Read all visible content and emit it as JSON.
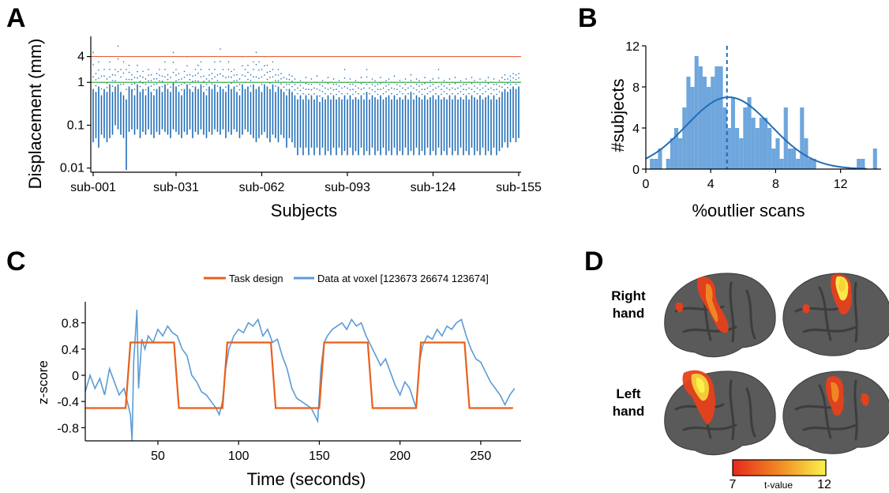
{
  "panels": {
    "a": {
      "label": "A"
    },
    "b": {
      "label": "B"
    },
    "c": {
      "label": "C"
    },
    "d": {
      "label": "D"
    }
  },
  "chart_data": [
    {
      "type": "scatter",
      "panel": "A",
      "title": "",
      "xlabel": "Subjects",
      "ylabel": "Displacement (mm)",
      "x_tick_labels": [
        "sub-001",
        "sub-031",
        "sub-062",
        "sub-093",
        "sub-124",
        "sub-155"
      ],
      "y_tick_labels": [
        "4",
        "1",
        "0.1",
        "0.01"
      ],
      "y_scale": "log",
      "ylim": [
        0.008,
        10
      ],
      "n_subjects": 155,
      "thresholds": [
        {
          "value": 4,
          "color": "#e8603c"
        },
        {
          "value": 1,
          "color": "#3fae49"
        }
      ],
      "point_color": "#1f6db8",
      "subject_ranges_mm": [
        [
          0.04,
          0.7,
          5
        ],
        [
          0.05,
          0.6,
          1.6
        ],
        [
          0.03,
          0.8,
          3
        ],
        [
          0.06,
          0.5,
          1.4
        ],
        [
          0.05,
          0.7,
          2
        ],
        [
          0.04,
          0.6,
          1.2
        ],
        [
          0.05,
          0.9,
          3
        ],
        [
          0.06,
          0.6,
          1.5
        ],
        [
          0.1,
          0.8,
          2
        ],
        [
          0.08,
          0.9,
          7
        ],
        [
          0.06,
          0.6,
          2
        ],
        [
          0.05,
          0.5,
          3
        ],
        [
          0.009,
          0.4,
          2
        ],
        [
          0.07,
          0.8,
          2.5
        ],
        [
          0.08,
          0.7,
          1.5
        ],
        [
          0.06,
          0.5,
          1.3
        ],
        [
          0.08,
          0.9,
          2.5
        ],
        [
          0.05,
          0.6,
          1.4
        ],
        [
          0.07,
          0.7,
          1.8
        ],
        [
          0.06,
          0.5,
          1.2
        ],
        [
          0.08,
          0.8,
          2
        ],
        [
          0.06,
          0.6,
          1.5
        ],
        [
          0.05,
          0.5,
          1.2
        ],
        [
          0.07,
          0.7,
          1.6
        ],
        [
          0.06,
          0.8,
          2
        ],
        [
          0.08,
          0.6,
          1.4
        ],
        [
          0.07,
          0.9,
          3
        ],
        [
          0.06,
          0.7,
          1.5
        ],
        [
          0.05,
          0.6,
          1.3
        ],
        [
          0.08,
          1.0,
          5
        ],
        [
          0.07,
          0.8,
          2
        ],
        [
          0.06,
          0.6,
          1.6
        ],
        [
          0.05,
          0.5,
          1.2
        ],
        [
          0.07,
          0.7,
          1.8
        ],
        [
          0.06,
          0.9,
          4
        ],
        [
          0.08,
          0.7,
          1.5
        ],
        [
          0.05,
          0.6,
          1.4
        ],
        [
          0.07,
          0.8,
          2
        ],
        [
          0.06,
          0.7,
          2.5
        ],
        [
          0.08,
          0.9,
          3
        ],
        [
          0.06,
          0.6,
          1.4
        ],
        [
          0.05,
          0.5,
          1.2
        ],
        [
          0.07,
          0.8,
          2
        ],
        [
          0.06,
          0.7,
          1.6
        ],
        [
          0.08,
          0.9,
          3
        ],
        [
          0.07,
          0.6,
          1.5
        ],
        [
          0.06,
          0.8,
          6
        ],
        [
          0.08,
          0.7,
          2
        ],
        [
          0.05,
          0.6,
          1.3
        ],
        [
          0.07,
          0.9,
          3
        ],
        [
          0.06,
          0.7,
          1.8
        ],
        [
          0.08,
          0.8,
          2
        ],
        [
          0.07,
          0.6,
          1.5
        ],
        [
          0.05,
          0.5,
          1.2
        ],
        [
          0.06,
          0.9,
          4
        ],
        [
          0.08,
          0.7,
          2
        ],
        [
          0.07,
          0.8,
          2.5
        ],
        [
          0.06,
          0.6,
          1.5
        ],
        [
          0.05,
          0.9,
          3
        ],
        [
          0.04,
          0.7,
          5
        ],
        [
          0.05,
          0.8,
          3
        ],
        [
          0.06,
          0.6,
          2
        ],
        [
          0.07,
          0.9,
          4
        ],
        [
          0.05,
          0.8,
          2.5
        ],
        [
          0.04,
          0.7,
          1.8
        ],
        [
          0.06,
          0.9,
          3
        ],
        [
          0.05,
          0.6,
          1.5
        ],
        [
          0.04,
          0.8,
          2
        ],
        [
          0.06,
          0.7,
          1.6
        ],
        [
          0.05,
          0.6,
          1.3
        ],
        [
          0.03,
          0.5,
          1.2
        ],
        [
          0.05,
          0.7,
          1.5
        ],
        [
          0.04,
          0.6,
          1.4
        ],
        [
          0.03,
          0.5,
          1.2
        ],
        [
          0.02,
          0.4,
          1.0
        ],
        [
          0.03,
          0.5,
          1.1
        ],
        [
          0.02,
          0.4,
          1.0
        ],
        [
          0.03,
          0.5,
          1.3
        ],
        [
          0.02,
          0.4,
          0.9
        ],
        [
          0.03,
          0.5,
          1.2
        ],
        [
          0.02,
          0.4,
          1.0
        ],
        [
          0.03,
          0.5,
          1.4
        ],
        [
          0.02,
          0.35,
          0.9
        ],
        [
          0.03,
          0.45,
          1.1
        ],
        [
          0.02,
          0.4,
          1.0
        ],
        [
          0.025,
          0.5,
          1.3
        ],
        [
          0.02,
          0.4,
          1.0
        ],
        [
          0.03,
          0.5,
          1.2
        ],
        [
          0.02,
          0.4,
          0.9
        ],
        [
          0.03,
          0.45,
          1.1
        ],
        [
          0.02,
          0.4,
          1.0
        ],
        [
          0.025,
          0.5,
          2
        ],
        [
          0.02,
          0.4,
          1.0
        ],
        [
          0.03,
          0.5,
          1.2
        ],
        [
          0.02,
          0.4,
          0.9
        ],
        [
          0.025,
          0.45,
          1.1
        ],
        [
          0.02,
          0.4,
          1.0
        ],
        [
          0.03,
          0.5,
          1.3
        ],
        [
          0.02,
          0.4,
          1.0
        ],
        [
          0.025,
          0.6,
          2
        ],
        [
          0.02,
          0.4,
          1.0
        ],
        [
          0.03,
          0.5,
          1.2
        ],
        [
          0.02,
          0.45,
          1.1
        ],
        [
          0.025,
          0.4,
          0.9
        ],
        [
          0.02,
          0.5,
          1.3
        ],
        [
          0.03,
          0.4,
          1.0
        ],
        [
          0.02,
          0.45,
          1.1
        ],
        [
          0.025,
          0.5,
          1.2
        ],
        [
          0.02,
          0.4,
          1.0
        ],
        [
          0.03,
          0.5,
          1.4
        ],
        [
          0.02,
          0.4,
          0.9
        ],
        [
          0.025,
          0.45,
          1.1
        ],
        [
          0.02,
          0.4,
          1.0
        ],
        [
          0.03,
          0.5,
          1.2
        ],
        [
          0.02,
          0.4,
          1.0
        ],
        [
          0.025,
          0.6,
          1.5
        ],
        [
          0.02,
          0.4,
          1.0
        ],
        [
          0.03,
          0.5,
          1.2
        ],
        [
          0.02,
          0.45,
          1.1
        ],
        [
          0.025,
          0.4,
          0.9
        ],
        [
          0.02,
          0.5,
          1.3
        ],
        [
          0.03,
          0.4,
          1.0
        ],
        [
          0.02,
          0.45,
          1.1
        ],
        [
          0.025,
          0.5,
          1.2
        ],
        [
          0.02,
          0.4,
          1.0
        ],
        [
          0.03,
          0.5,
          2
        ],
        [
          0.02,
          0.4,
          0.9
        ],
        [
          0.025,
          0.45,
          1.1
        ],
        [
          0.02,
          0.4,
          1.0
        ],
        [
          0.03,
          0.5,
          1.2
        ],
        [
          0.02,
          0.4,
          1.0
        ],
        [
          0.025,
          0.5,
          1.3
        ],
        [
          0.02,
          0.4,
          1.0
        ],
        [
          0.03,
          0.45,
          1.1
        ],
        [
          0.02,
          0.4,
          0.9
        ],
        [
          0.025,
          0.5,
          1.2
        ],
        [
          0.02,
          0.4,
          1.0
        ],
        [
          0.03,
          0.5,
          1.3
        ],
        [
          0.02,
          0.45,
          1.1
        ],
        [
          0.025,
          0.4,
          1.0
        ],
        [
          0.02,
          0.5,
          1.2
        ],
        [
          0.03,
          0.4,
          1.0
        ],
        [
          0.02,
          0.45,
          1.1
        ],
        [
          0.025,
          0.5,
          1.3
        ],
        [
          0.02,
          0.4,
          1.0
        ],
        [
          0.03,
          0.5,
          1.2
        ],
        [
          0.02,
          0.4,
          0.9
        ],
        [
          0.025,
          0.45,
          1.1
        ],
        [
          0.03,
          0.6,
          1.3
        ],
        [
          0.04,
          0.7,
          1.5
        ],
        [
          0.03,
          0.6,
          1.2
        ],
        [
          0.04,
          0.7,
          1.4
        ],
        [
          0.05,
          0.8,
          1.6
        ],
        [
          0.04,
          0.7,
          1.5
        ],
        [
          0.05,
          0.8,
          1.6
        ]
      ]
    },
    {
      "type": "bar",
      "panel": "B",
      "title": "",
      "xlabel": "%outlier scans",
      "ylabel": "#subjects",
      "x_ticks": [
        0,
        4,
        8,
        12
      ],
      "y_ticks": [
        0,
        4,
        8,
        12
      ],
      "xlim": [
        0,
        14.5
      ],
      "ylim": [
        0,
        12
      ],
      "bin_width": 0.25,
      "bin_starts": [
        0.25,
        0.5,
        0.75,
        1.0,
        1.25,
        1.5,
        1.75,
        2.0,
        2.25,
        2.5,
        2.75,
        3.0,
        3.25,
        3.5,
        3.75,
        4.0,
        4.25,
        4.5,
        4.75,
        5.0,
        5.25,
        5.5,
        5.75,
        6.0,
        6.25,
        6.5,
        6.75,
        7.0,
        7.25,
        7.5,
        7.75,
        8.0,
        8.25,
        8.5,
        8.75,
        9.0,
        9.25,
        9.5,
        9.75,
        10.0,
        10.25,
        13.0,
        13.25,
        14.0
      ],
      "counts": [
        1,
        1,
        2,
        0,
        1,
        3,
        4,
        3,
        6,
        9,
        8,
        11,
        10,
        9,
        8,
        9,
        10,
        10,
        6,
        4,
        7,
        4,
        3,
        6,
        7,
        5,
        4,
        5,
        5,
        4,
        2,
        3,
        1,
        6,
        2,
        2,
        1,
        6,
        3,
        1,
        1,
        1,
        1,
        2
      ],
      "bar_color": "#6ea6dd",
      "fit_curve": {
        "type": "gaussian",
        "mean": 5.1,
        "sd": 2.6,
        "peak": 7.0,
        "color": "#1f6db8"
      },
      "median_line": {
        "x": 5.0,
        "style": "dashed",
        "color": "#1f6db8"
      }
    },
    {
      "type": "line",
      "panel": "C",
      "title": "",
      "xlabel": "Time (seconds)",
      "ylabel": "z-score",
      "x_ticks": [
        50,
        100,
        150,
        200,
        250
      ],
      "y_tick_labels": [
        "0.8",
        "0.4",
        "0",
        "-0.4",
        "-0.8"
      ],
      "xlim": [
        5,
        275
      ],
      "ylim": [
        -1.0,
        1.0
      ],
      "legend_position": "top-right",
      "series": [
        {
          "name": "Task design",
          "color": "#e8601c",
          "x": [
            5,
            30,
            33,
            60,
            63,
            90,
            93,
            120,
            123,
            150,
            153,
            180,
            183,
            210,
            213,
            240,
            243,
            270
          ],
          "y": [
            -0.5,
            -0.5,
            0.5,
            0.5,
            -0.5,
            -0.5,
            0.5,
            0.5,
            -0.5,
            -0.5,
            0.5,
            0.5,
            -0.5,
            -0.5,
            0.5,
            0.5,
            -0.5,
            -0.5
          ]
        },
        {
          "name": "Data at voxel [123673 26674 123674]",
          "color": "#5b9bd5",
          "x": [
            5,
            8,
            11,
            14,
            17,
            20,
            23,
            26,
            29,
            31,
            33,
            34,
            35,
            36,
            37,
            38,
            40,
            42,
            44,
            47,
            50,
            53,
            56,
            59,
            62,
            65,
            68,
            71,
            74,
            77,
            80,
            83,
            86,
            88,
            90,
            92,
            94,
            97,
            100,
            103,
            106,
            109,
            112,
            115,
            118,
            121,
            124,
            127,
            130,
            133,
            136,
            139,
            142,
            145,
            147,
            149,
            151,
            153,
            155,
            158,
            161,
            164,
            167,
            170,
            173,
            176,
            179,
            182,
            185,
            188,
            191,
            194,
            197,
            200,
            203,
            206,
            208,
            210,
            212,
            214,
            217,
            220,
            223,
            226,
            229,
            232,
            235,
            238,
            241,
            244,
            247,
            250,
            253,
            256,
            259,
            262,
            265,
            268,
            271
          ],
          "y": [
            -0.25,
            0.0,
            -0.2,
            -0.05,
            -0.3,
            0.1,
            -0.1,
            -0.3,
            -0.2,
            -0.4,
            -0.6,
            -1.0,
            0.2,
            0.6,
            1.0,
            -0.2,
            0.55,
            0.4,
            0.6,
            0.5,
            0.7,
            0.6,
            0.75,
            0.65,
            0.6,
            0.4,
            0.3,
            0.0,
            -0.1,
            -0.25,
            -0.3,
            -0.4,
            -0.5,
            -0.6,
            -0.4,
            0.1,
            0.4,
            0.6,
            0.7,
            0.65,
            0.8,
            0.75,
            0.85,
            0.6,
            0.7,
            0.5,
            0.55,
            0.3,
            0.1,
            -0.2,
            -0.35,
            -0.4,
            -0.45,
            -0.5,
            -0.6,
            -0.7,
            0.1,
            0.5,
            0.6,
            0.7,
            0.75,
            0.8,
            0.7,
            0.85,
            0.75,
            0.8,
            0.6,
            0.45,
            0.3,
            0.15,
            0.25,
            0.05,
            -0.15,
            -0.3,
            -0.1,
            -0.2,
            -0.35,
            -0.5,
            0.2,
            0.45,
            0.6,
            0.55,
            0.7,
            0.6,
            0.75,
            0.7,
            0.8,
            0.85,
            0.6,
            0.4,
            0.25,
            0.2,
            0.05,
            -0.1,
            -0.2,
            -0.3,
            -0.45,
            -0.3,
            -0.2
          ]
        }
      ]
    }
  ],
  "panel_d": {
    "row_labels": [
      {
        "line1": "Right",
        "line2": "hand"
      },
      {
        "line1": "Left",
        "line2": "hand"
      }
    ],
    "colorbar": {
      "min_label": "7",
      "max_label": "12",
      "title": "t-value",
      "color_low": "#e8281c",
      "color_mid": "#f08a24",
      "color_high": "#fbf24c"
    },
    "brain_base_color": "#5a5a5a",
    "activation_colors": [
      "#e8401c",
      "#f08a24",
      "#f6d23a",
      "#fbf24c"
    ]
  }
}
